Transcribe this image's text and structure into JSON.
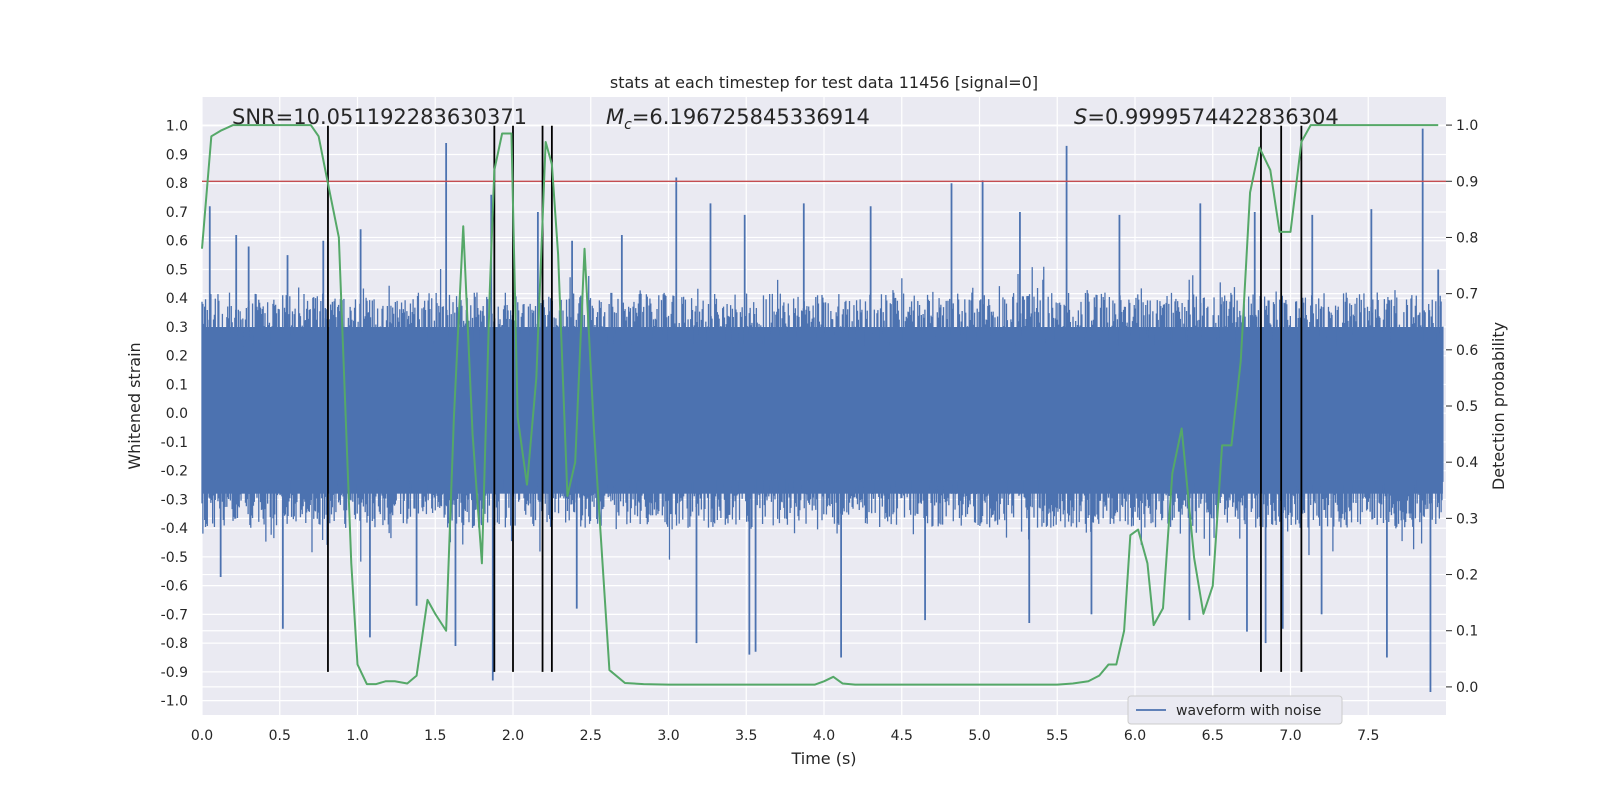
{
  "chart_data": {
    "type": "line",
    "title": "stats at each timestep for test data 11456 [signal=0]",
    "xlabel": "Time (s)",
    "ylabel": "Whitened strain",
    "ylabel_right": "Detection probability",
    "xlim": [
      0.0,
      8.0
    ],
    "ylim": [
      -1.05,
      1.1
    ],
    "ylim_right": [
      -0.05,
      1.05
    ],
    "x_ticks": [
      "0.0",
      "0.5",
      "1.0",
      "1.5",
      "2.0",
      "2.5",
      "3.0",
      "3.5",
      "4.0",
      "4.5",
      "5.0",
      "5.5",
      "6.0",
      "6.5",
      "7.0",
      "7.5"
    ],
    "x_tick_values": [
      0.0,
      0.5,
      1.0,
      1.5,
      2.0,
      2.5,
      3.0,
      3.5,
      4.0,
      4.5,
      5.0,
      5.5,
      6.0,
      6.5,
      7.0,
      7.5
    ],
    "y_ticks": [
      "1.0",
      "0.9",
      "0.8",
      "0.7",
      "0.6",
      "0.5",
      "0.4",
      "0.3",
      "0.2",
      "0.1",
      "0.0",
      "-0.1",
      "-0.2",
      "-0.3",
      "-0.4",
      "-0.5",
      "-0.6",
      "-0.7",
      "-0.8",
      "-0.9",
      "-1.0"
    ],
    "y_tick_values": [
      1.0,
      0.9,
      0.8,
      0.7,
      0.6,
      0.5,
      0.4,
      0.3,
      0.2,
      0.1,
      0.0,
      -0.1,
      -0.2,
      -0.3,
      -0.4,
      -0.5,
      -0.6,
      -0.7,
      -0.8,
      -0.9,
      -1.0
    ],
    "y_right_ticks": [
      "1.0",
      "0.9",
      "0.8",
      "0.7",
      "0.6",
      "0.5",
      "0.4",
      "0.3",
      "0.2",
      "0.1",
      "0.0"
    ],
    "y_right_tick_values": [
      1.0,
      0.9,
      0.8,
      0.7,
      0.6,
      0.5,
      0.4,
      0.3,
      0.2,
      0.1,
      0.0
    ],
    "annotations": {
      "snr": "SNR=10.051192283630371",
      "mc_symbol": "M",
      "mc_sub": "c",
      "mc_value": "=6.196725845336914",
      "s_symbol": "S",
      "s_value": "=0.9999574422836304"
    },
    "threshold": {
      "value": 0.9,
      "axis": "right",
      "color": "#c44e52"
    },
    "event_markers": {
      "x": [
        0.81,
        1.88,
        2.0,
        2.19,
        2.25,
        6.81,
        6.94,
        7.07
      ],
      "y_range": [
        -0.9,
        1.0
      ],
      "color": "#000000"
    },
    "legend": {
      "entries": [
        "waveform with noise"
      ],
      "placement": "lower-right"
    },
    "series": [
      {
        "name": "waveform with noise",
        "axis": "left",
        "color": "#4c72b0",
        "typical_range": [
          -0.38,
          0.42
        ],
        "spikes": [
          {
            "x": 0.05,
            "y": 0.72
          },
          {
            "x": 0.22,
            "y": 0.62
          },
          {
            "x": 0.3,
            "y": 0.58
          },
          {
            "x": 0.55,
            "y": 0.55
          },
          {
            "x": 0.78,
            "y": 0.6
          },
          {
            "x": 1.02,
            "y": 0.64
          },
          {
            "x": 1.57,
            "y": 0.94
          },
          {
            "x": 1.86,
            "y": 0.76
          },
          {
            "x": 2.16,
            "y": 0.7
          },
          {
            "x": 2.38,
            "y": 0.6
          },
          {
            "x": 2.7,
            "y": 0.62
          },
          {
            "x": 3.05,
            "y": 0.82
          },
          {
            "x": 3.27,
            "y": 0.73
          },
          {
            "x": 3.49,
            "y": 0.69
          },
          {
            "x": 3.87,
            "y": 0.73
          },
          {
            "x": 4.3,
            "y": 0.72
          },
          {
            "x": 4.82,
            "y": 0.8
          },
          {
            "x": 5.02,
            "y": 0.81
          },
          {
            "x": 5.26,
            "y": 0.7
          },
          {
            "x": 5.56,
            "y": 0.93
          },
          {
            "x": 5.9,
            "y": 0.69
          },
          {
            "x": 6.42,
            "y": 0.73
          },
          {
            "x": 6.77,
            "y": 0.7
          },
          {
            "x": 7.14,
            "y": 0.69
          },
          {
            "x": 7.52,
            "y": 0.71
          },
          {
            "x": 7.85,
            "y": 0.99
          },
          {
            "x": 7.95,
            "y": 0.5
          },
          {
            "x": 0.12,
            "y": -0.57
          },
          {
            "x": 0.52,
            "y": -0.75
          },
          {
            "x": 1.08,
            "y": -0.78
          },
          {
            "x": 1.38,
            "y": -0.67
          },
          {
            "x": 1.63,
            "y": -0.81
          },
          {
            "x": 1.87,
            "y": -0.93
          },
          {
            "x": 2.41,
            "y": -0.68
          },
          {
            "x": 3.18,
            "y": -0.8
          },
          {
            "x": 3.52,
            "y": -0.84
          },
          {
            "x": 3.56,
            "y": -0.83
          },
          {
            "x": 4.11,
            "y": -0.85
          },
          {
            "x": 4.65,
            "y": -0.72
          },
          {
            "x": 5.32,
            "y": -0.73
          },
          {
            "x": 5.72,
            "y": -0.7
          },
          {
            "x": 6.35,
            "y": -0.72
          },
          {
            "x": 6.72,
            "y": -0.76
          },
          {
            "x": 6.84,
            "y": -0.8
          },
          {
            "x": 6.95,
            "y": -0.75
          },
          {
            "x": 7.2,
            "y": -0.7
          },
          {
            "x": 7.62,
            "y": -0.85
          },
          {
            "x": 7.9,
            "y": -0.97
          }
        ]
      },
      {
        "name": "detection probability",
        "axis": "right",
        "color": "#55a868",
        "x": [
          0.0,
          0.06,
          0.12,
          0.2,
          0.3,
          0.5,
          0.6,
          0.7,
          0.75,
          0.8,
          0.88,
          0.96,
          1.0,
          1.06,
          1.12,
          1.18,
          1.24,
          1.32,
          1.38,
          1.45,
          1.5,
          1.57,
          1.62,
          1.68,
          1.74,
          1.8,
          1.85,
          1.88,
          1.93,
          1.99,
          2.03,
          2.09,
          2.15,
          2.21,
          2.25,
          2.29,
          2.35,
          2.4,
          2.46,
          2.52,
          2.62,
          2.72,
          2.84,
          3.0,
          3.2,
          3.4,
          3.6,
          3.8,
          3.94,
          4.0,
          4.06,
          4.12,
          4.2,
          4.3,
          4.5,
          4.7,
          4.9,
          5.1,
          5.3,
          5.5,
          5.6,
          5.7,
          5.77,
          5.83,
          5.88,
          5.93,
          5.97,
          6.02,
          6.08,
          6.12,
          6.18,
          6.24,
          6.3,
          6.38,
          6.44,
          6.5,
          6.56,
          6.62,
          6.68,
          6.74,
          6.8,
          6.87,
          6.93,
          7.0,
          7.07,
          7.13,
          7.2,
          7.3,
          7.5,
          7.7,
          7.95
        ],
        "y": [
          0.78,
          0.98,
          0.99,
          1.0,
          1.0,
          1.0,
          1.0,
          1.0,
          0.98,
          0.91,
          0.8,
          0.22,
          0.04,
          0.005,
          0.005,
          0.01,
          0.01,
          0.006,
          0.02,
          0.155,
          0.13,
          0.1,
          0.48,
          0.82,
          0.45,
          0.22,
          0.7,
          0.92,
          0.985,
          0.985,
          0.48,
          0.36,
          0.55,
          0.97,
          0.93,
          0.77,
          0.34,
          0.4,
          0.78,
          0.46,
          0.03,
          0.007,
          0.005,
          0.004,
          0.004,
          0.004,
          0.004,
          0.004,
          0.004,
          0.01,
          0.018,
          0.006,
          0.004,
          0.004,
          0.004,
          0.004,
          0.004,
          0.004,
          0.004,
          0.004,
          0.006,
          0.01,
          0.02,
          0.04,
          0.04,
          0.1,
          0.27,
          0.28,
          0.22,
          0.11,
          0.14,
          0.38,
          0.46,
          0.23,
          0.13,
          0.18,
          0.43,
          0.43,
          0.58,
          0.88,
          0.96,
          0.92,
          0.81,
          0.81,
          0.97,
          1.0,
          1.0,
          1.0,
          1.0,
          1.0,
          1.0
        ]
      }
    ]
  }
}
